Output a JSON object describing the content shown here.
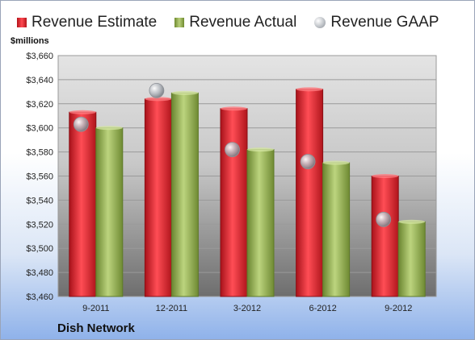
{
  "chart_data": {
    "type": "bar",
    "y_unit": "$millions",
    "company": "Dish Network",
    "categories": [
      "9-2011",
      "12-2011",
      "3-2012",
      "6-2012",
      "9-2012"
    ],
    "series": [
      {
        "name": "Revenue Estimate",
        "kind": "bar",
        "color": "#d8232a",
        "values": [
          3613,
          3624,
          3616,
          3632,
          3560
        ]
      },
      {
        "name": "Revenue Actual",
        "kind": "bar",
        "color": "#9cba5a",
        "values": [
          3600,
          3629,
          3582,
          3571,
          3522
        ]
      },
      {
        "name": "Revenue GAAP",
        "kind": "marker",
        "color": "#b8bcc2",
        "values": [
          3603,
          3631,
          3582,
          3572,
          3524
        ]
      }
    ],
    "ylim": [
      3460,
      3660
    ],
    "yticks": [
      3460,
      3480,
      3500,
      3520,
      3540,
      3560,
      3580,
      3600,
      3620,
      3640,
      3660
    ],
    "ytick_labels": [
      "$3,460",
      "$3,480",
      "$3,500",
      "$3,520",
      "$3,540",
      "$3,560",
      "$3,580",
      "$3,600",
      "$3,620",
      "$3,640",
      "$3,660"
    ],
    "grid": true,
    "legend_position": "top"
  }
}
